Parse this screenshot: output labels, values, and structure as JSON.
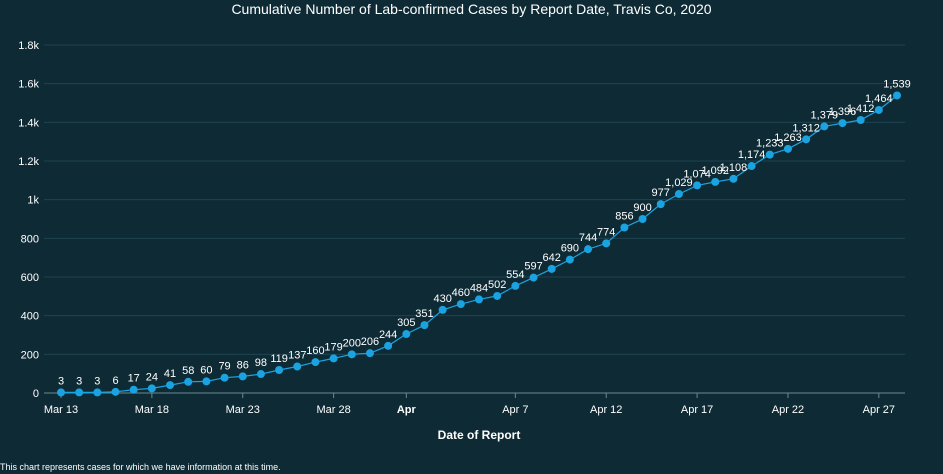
{
  "chart_data": {
    "type": "line",
    "title": "Cumulative Number of Lab-confirmed Cases by Report Date, Travis Co, 2020",
    "xlabel": "Date of Report",
    "ylabel": "",
    "ylim": [
      0,
      1800
    ],
    "yticks": [
      0,
      200,
      400,
      600,
      800,
      1000,
      1200,
      1400,
      1600,
      1800
    ],
    "ytick_labels": [
      "0",
      "200",
      "400",
      "600",
      "800",
      "1k",
      "1.2k",
      "1.4k",
      "1.6k",
      "1.8k"
    ],
    "xtick_labels": [
      {
        "label": "Mar 13",
        "day": 0,
        "bold": false
      },
      {
        "label": "Mar 18",
        "day": 5,
        "bold": false
      },
      {
        "label": "Mar 23",
        "day": 10,
        "bold": false
      },
      {
        "label": "Mar 28",
        "day": 15,
        "bold": false
      },
      {
        "label": "Apr",
        "day": 19,
        "bold": true
      },
      {
        "label": "Apr 7",
        "day": 25,
        "bold": false
      },
      {
        "label": "Apr 12",
        "day": 30,
        "bold": false
      },
      {
        "label": "Apr 17",
        "day": 35,
        "bold": false
      },
      {
        "label": "Apr 22",
        "day": 40,
        "bold": false
      },
      {
        "label": "Apr 27",
        "day": 45,
        "bold": false
      }
    ],
    "x_start": "Mar 13",
    "x_end": "Apr 27",
    "grid": true,
    "colors": {
      "line": "#1aa3e0",
      "point": "#1aa3e0",
      "grid": "#1f4350",
      "axis": "#6a8a96"
    },
    "series": [
      {
        "name": "",
        "values": [
          3,
          3,
          3,
          6,
          17,
          24,
          41,
          58,
          60,
          79,
          86,
          98,
          119,
          137,
          160,
          179,
          200,
          206,
          244,
          305,
          351,
          430,
          460,
          484,
          502,
          554,
          597,
          642,
          690,
          744,
          774,
          856,
          900,
          977,
          1029,
          1074,
          1092,
          1108,
          1174,
          1233,
          1263,
          1312,
          1379,
          1396,
          1412,
          1464,
          1539
        ],
        "labels": [
          "3",
          "3",
          "3",
          "6",
          "17",
          "24",
          "41",
          "58",
          "60",
          "79",
          "86",
          "98",
          "119",
          "137",
          "160",
          "179",
          "200",
          "206",
          "244",
          "305",
          "351",
          "430",
          "460",
          "484",
          "502",
          "554",
          "597",
          "642",
          "690",
          "744",
          "774",
          "856",
          "900",
          "977",
          "1,029",
          "1,074",
          "1,092",
          "1,108",
          "1,174",
          "1,233",
          "1,263",
          "1,312",
          "1,379",
          "1,396",
          "1,412",
          "1,464",
          "1,539"
        ]
      }
    ]
  },
  "footnote": "This chart represents cases for which we have information at this time."
}
